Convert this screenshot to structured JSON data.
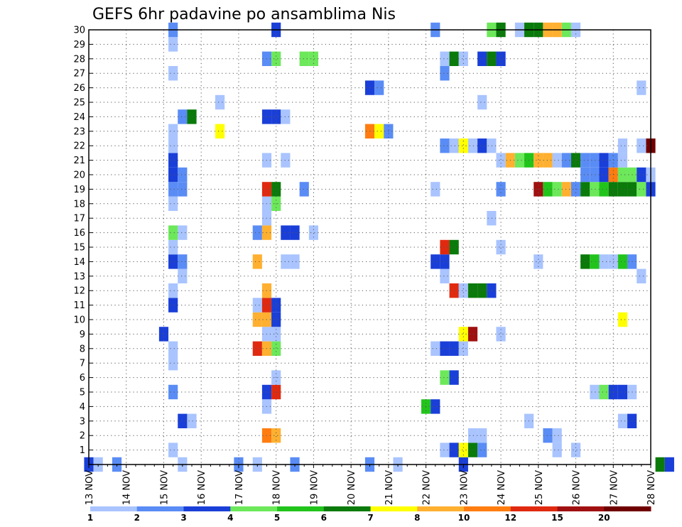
{
  "chart_data": {
    "type": "heatmap",
    "title": "GEFS 6hr padavine po ansamblima Nis",
    "x_tick_labels": [
      "13 NOV",
      "14 NOV",
      "15 NOV",
      "16 NOV",
      "17 NOV",
      "18 NOV",
      "19 NOV",
      "20 NOV",
      "21 NOV",
      "22 NOV",
      "23 NOV",
      "24 NOV",
      "25 NOV",
      "26 NOV",
      "27 NOV",
      "28 NOV"
    ],
    "y_tick_labels": [
      "1",
      "2",
      "3",
      "4",
      "5",
      "6",
      "7",
      "8",
      "9",
      "10",
      "11",
      "12",
      "13",
      "14",
      "15",
      "16",
      "17",
      "18",
      "19",
      "20",
      "21",
      "22",
      "23",
      "24",
      "25",
      "26",
      "27",
      "28",
      "29",
      "30"
    ],
    "ylim": [
      0,
      30
    ],
    "xlim_steps": [
      0,
      60
    ],
    "steps_per_day": 4,
    "grid": true,
    "colorbar": {
      "labels": [
        "1",
        "2",
        "3",
        "4",
        "5",
        "6",
        "7",
        "8",
        "10",
        "12",
        "15",
        "20"
      ],
      "colors": [
        "#a9c4ff",
        "#5a8cf5",
        "#1a3fd8",
        "#6ce85a",
        "#22c41c",
        "#0a7a0a",
        "#ffff00",
        "#ffb030",
        "#ff7d10",
        "#e02a10",
        "#a01010",
        "#700000"
      ]
    },
    "cells": [
      [
        0,
        0,
        "#1a3fd8"
      ],
      [
        0,
        1,
        "#a9c4ff"
      ],
      [
        0,
        3,
        "#5a8cf5"
      ],
      [
        0,
        10,
        "#a9c4ff"
      ],
      [
        0,
        16,
        "#5a8cf5"
      ],
      [
        0,
        18,
        "#a9c4ff"
      ],
      [
        0,
        22,
        "#5a8cf5"
      ],
      [
        0,
        30,
        "#5a8cf5"
      ],
      [
        0,
        33,
        "#a9c4ff"
      ],
      [
        0,
        40,
        "#1a3fd8"
      ],
      [
        0,
        61,
        "#0a7a0a"
      ],
      [
        0,
        62,
        "#1a3fd8"
      ],
      [
        0,
        71,
        "#6ce85a"
      ],
      [
        0,
        74,
        "#1a3fd8"
      ],
      [
        0,
        75,
        "#e02a10"
      ],
      [
        0,
        76,
        "#6ce85a"
      ],
      [
        0,
        77,
        "#a9c4ff"
      ],
      [
        1,
        9,
        "#a9c4ff"
      ],
      [
        1,
        38,
        "#a9c4ff"
      ],
      [
        1,
        39,
        "#1a3fd8"
      ],
      [
        1,
        40,
        "#ffff00"
      ],
      [
        1,
        41,
        "#0a7a0a"
      ],
      [
        1,
        42,
        "#5a8cf5"
      ],
      [
        1,
        50,
        "#a9c4ff"
      ],
      [
        1,
        52,
        "#a9c4ff"
      ],
      [
        2,
        19,
        "#ff7d10"
      ],
      [
        2,
        20,
        "#ffb030"
      ],
      [
        2,
        41,
        "#a9c4ff"
      ],
      [
        2,
        42,
        "#a9c4ff"
      ],
      [
        2,
        49,
        "#5a8cf5"
      ],
      [
        2,
        50,
        "#a9c4ff"
      ],
      [
        3,
        10,
        "#1a3fd8"
      ],
      [
        3,
        11,
        "#a9c4ff"
      ],
      [
        3,
        47,
        "#a9c4ff"
      ],
      [
        3,
        57,
        "#a9c4ff"
      ],
      [
        3,
        58,
        "#1a3fd8"
      ],
      [
        4,
        19,
        "#a9c4ff"
      ],
      [
        4,
        36,
        "#22c41c"
      ],
      [
        4,
        37,
        "#1a3fd8"
      ],
      [
        5,
        9,
        "#5a8cf5"
      ],
      [
        5,
        19,
        "#1a3fd8"
      ],
      [
        5,
        20,
        "#e02a10"
      ],
      [
        5,
        54,
        "#a9c4ff"
      ],
      [
        5,
        55,
        "#6ce85a"
      ],
      [
        5,
        56,
        "#1a3fd8"
      ],
      [
        5,
        57,
        "#1a3fd8"
      ],
      [
        5,
        58,
        "#a9c4ff"
      ],
      [
        6,
        20,
        "#a9c4ff"
      ],
      [
        6,
        38,
        "#6ce85a"
      ],
      [
        6,
        39,
        "#1a3fd8"
      ],
      [
        7,
        9,
        "#a9c4ff"
      ],
      [
        8,
        9,
        "#a9c4ff"
      ],
      [
        8,
        18,
        "#e02a10"
      ],
      [
        8,
        19,
        "#ffb030"
      ],
      [
        8,
        20,
        "#6ce85a"
      ],
      [
        8,
        37,
        "#a9c4ff"
      ],
      [
        8,
        38,
        "#1a3fd8"
      ],
      [
        8,
        39,
        "#1a3fd8"
      ],
      [
        8,
        40,
        "#a9c4ff"
      ],
      [
        9,
        8,
        "#1a3fd8"
      ],
      [
        9,
        19,
        "#a9c4ff"
      ],
      [
        9,
        20,
        "#a9c4ff"
      ],
      [
        9,
        40,
        "#ffff00"
      ],
      [
        9,
        41,
        "#a01010"
      ],
      [
        9,
        44,
        "#a9c4ff"
      ],
      [
        10,
        18,
        "#ffb030"
      ],
      [
        10,
        19,
        "#ffb030"
      ],
      [
        10,
        20,
        "#1a3fd8"
      ],
      [
        10,
        57,
        "#ffff00"
      ],
      [
        11,
        9,
        "#1a3fd8"
      ],
      [
        11,
        18,
        "#a9c4ff"
      ],
      [
        11,
        19,
        "#e02a10"
      ],
      [
        11,
        20,
        "#1a3fd8"
      ],
      [
        12,
        9,
        "#a9c4ff"
      ],
      [
        12,
        19,
        "#ffb030"
      ],
      [
        12,
        39,
        "#e02a10"
      ],
      [
        12,
        40,
        "#a9c4ff"
      ],
      [
        12,
        41,
        "#0a7a0a"
      ],
      [
        12,
        42,
        "#0a7a0a"
      ],
      [
        12,
        43,
        "#1a3fd8"
      ],
      [
        13,
        10,
        "#a9c4ff"
      ],
      [
        13,
        38,
        "#a9c4ff"
      ],
      [
        13,
        59,
        "#a9c4ff"
      ],
      [
        14,
        9,
        "#1a3fd8"
      ],
      [
        14,
        10,
        "#5a8cf5"
      ],
      [
        14,
        18,
        "#ffb030"
      ],
      [
        14,
        21,
        "#a9c4ff"
      ],
      [
        14,
        22,
        "#a9c4ff"
      ],
      [
        14,
        37,
        "#1a3fd8"
      ],
      [
        14,
        38,
        "#1a3fd8"
      ],
      [
        14,
        48,
        "#a9c4ff"
      ],
      [
        14,
        53,
        "#0a7a0a"
      ],
      [
        14,
        54,
        "#22c41c"
      ],
      [
        14,
        55,
        "#a9c4ff"
      ],
      [
        14,
        56,
        "#a9c4ff"
      ],
      [
        14,
        57,
        "#22c41c"
      ],
      [
        14,
        58,
        "#5a8cf5"
      ],
      [
        15,
        9,
        "#a9c4ff"
      ],
      [
        15,
        38,
        "#e02a10"
      ],
      [
        15,
        39,
        "#0a7a0a"
      ],
      [
        15,
        44,
        "#a9c4ff"
      ],
      [
        16,
        9,
        "#6ce85a"
      ],
      [
        16,
        10,
        "#a9c4ff"
      ],
      [
        16,
        18,
        "#5a8cf5"
      ],
      [
        16,
        19,
        "#ffb030"
      ],
      [
        16,
        21,
        "#1a3fd8"
      ],
      [
        16,
        22,
        "#1a3fd8"
      ],
      [
        16,
        24,
        "#a9c4ff"
      ],
      [
        17,
        19,
        "#a9c4ff"
      ],
      [
        17,
        43,
        "#a9c4ff"
      ],
      [
        18,
        9,
        "#a9c4ff"
      ],
      [
        18,
        19,
        "#a9c4ff"
      ],
      [
        18,
        20,
        "#6ce85a"
      ],
      [
        19,
        9,
        "#5a8cf5"
      ],
      [
        19,
        10,
        "#5a8cf5"
      ],
      [
        19,
        19,
        "#e02a10"
      ],
      [
        19,
        20,
        "#0a7a0a"
      ],
      [
        19,
        23,
        "#5a8cf5"
      ],
      [
        19,
        37,
        "#a9c4ff"
      ],
      [
        19,
        44,
        "#5a8cf5"
      ],
      [
        19,
        48,
        "#a01010"
      ],
      [
        19,
        49,
        "#22c41c"
      ],
      [
        19,
        50,
        "#6ce85a"
      ],
      [
        19,
        51,
        "#ffb030"
      ],
      [
        19,
        52,
        "#5a8cf5"
      ],
      [
        19,
        53,
        "#0a7a0a"
      ],
      [
        19,
        54,
        "#6ce85a"
      ],
      [
        19,
        55,
        "#22c41c"
      ],
      [
        19,
        56,
        "#0a7a0a"
      ],
      [
        19,
        57,
        "#0a7a0a"
      ],
      [
        19,
        58,
        "#0a7a0a"
      ],
      [
        19,
        59,
        "#6ce85a"
      ],
      [
        19,
        60,
        "#1a3fd8"
      ],
      [
        20,
        9,
        "#1a3fd8"
      ],
      [
        20,
        10,
        "#5a8cf5"
      ],
      [
        20,
        53,
        "#5a8cf5"
      ],
      [
        20,
        54,
        "#5a8cf5"
      ],
      [
        20,
        55,
        "#1a3fd8"
      ],
      [
        20,
        56,
        "#ff7d10"
      ],
      [
        20,
        57,
        "#6ce85a"
      ],
      [
        20,
        58,
        "#6ce85a"
      ],
      [
        20,
        59,
        "#1a3fd8"
      ],
      [
        20,
        60,
        "#a9c4ff"
      ],
      [
        21,
        9,
        "#1a3fd8"
      ],
      [
        21,
        19,
        "#a9c4ff"
      ],
      [
        21,
        21,
        "#a9c4ff"
      ],
      [
        21,
        44,
        "#a9c4ff"
      ],
      [
        21,
        45,
        "#ffb030"
      ],
      [
        21,
        46,
        "#6ce85a"
      ],
      [
        21,
        47,
        "#22c41c"
      ],
      [
        21,
        48,
        "#ffb030"
      ],
      [
        21,
        49,
        "#ffb030"
      ],
      [
        21,
        50,
        "#a9c4ff"
      ],
      [
        21,
        51,
        "#5a8cf5"
      ],
      [
        21,
        52,
        "#0a7a0a"
      ],
      [
        21,
        53,
        "#5a8cf5"
      ],
      [
        21,
        54,
        "#5a8cf5"
      ],
      [
        21,
        55,
        "#1a3fd8"
      ],
      [
        21,
        56,
        "#5a8cf5"
      ],
      [
        21,
        57,
        "#a9c4ff"
      ],
      [
        22,
        9,
        "#a9c4ff"
      ],
      [
        22,
        38,
        "#5a8cf5"
      ],
      [
        22,
        39,
        "#a9c4ff"
      ],
      [
        22,
        40,
        "#ffff00"
      ],
      [
        22,
        41,
        "#a9c4ff"
      ],
      [
        22,
        42,
        "#1a3fd8"
      ],
      [
        22,
        43,
        "#a9c4ff"
      ],
      [
        22,
        57,
        "#a9c4ff"
      ],
      [
        22,
        59,
        "#a9c4ff"
      ],
      [
        22,
        60,
        "#700000"
      ],
      [
        23,
        9,
        "#a9c4ff"
      ],
      [
        23,
        14,
        "#ffff00"
      ],
      [
        23,
        30,
        "#ff7d10"
      ],
      [
        23,
        31,
        "#ffff00"
      ],
      [
        23,
        32,
        "#5a8cf5"
      ],
      [
        24,
        10,
        "#5a8cf5"
      ],
      [
        24,
        11,
        "#0a7a0a"
      ],
      [
        24,
        19,
        "#1a3fd8"
      ],
      [
        24,
        20,
        "#1a3fd8"
      ],
      [
        24,
        21,
        "#a9c4ff"
      ],
      [
        25,
        14,
        "#a9c4ff"
      ],
      [
        25,
        42,
        "#a9c4ff"
      ],
      [
        26,
        30,
        "#1a3fd8"
      ],
      [
        26,
        31,
        "#5a8cf5"
      ],
      [
        26,
        59,
        "#a9c4ff"
      ],
      [
        27,
        9,
        "#a9c4ff"
      ],
      [
        27,
        38,
        "#5a8cf5"
      ],
      [
        28,
        19,
        "#5a8cf5"
      ],
      [
        28,
        20,
        "#6ce85a"
      ],
      [
        28,
        23,
        "#6ce85a"
      ],
      [
        28,
        24,
        "#6ce85a"
      ],
      [
        28,
        38,
        "#a9c4ff"
      ],
      [
        28,
        39,
        "#0a7a0a"
      ],
      [
        28,
        40,
        "#a9c4ff"
      ],
      [
        28,
        42,
        "#1a3fd8"
      ],
      [
        28,
        43,
        "#0a7a0a"
      ],
      [
        28,
        44,
        "#1a3fd8"
      ],
      [
        29,
        9,
        "#a9c4ff"
      ],
      [
        30,
        9,
        "#5a8cf5"
      ],
      [
        30,
        20,
        "#1a3fd8"
      ],
      [
        30,
        37,
        "#5a8cf5"
      ],
      [
        30,
        43,
        "#6ce85a"
      ],
      [
        30,
        44,
        "#0a7a0a"
      ],
      [
        30,
        46,
        "#a9c4ff"
      ],
      [
        30,
        47,
        "#0a7a0a"
      ],
      [
        30,
        48,
        "#0a7a0a"
      ],
      [
        30,
        49,
        "#ffb030"
      ],
      [
        30,
        50,
        "#ffb030"
      ],
      [
        30,
        51,
        "#6ce85a"
      ],
      [
        30,
        52,
        "#a9c4ff"
      ]
    ]
  }
}
